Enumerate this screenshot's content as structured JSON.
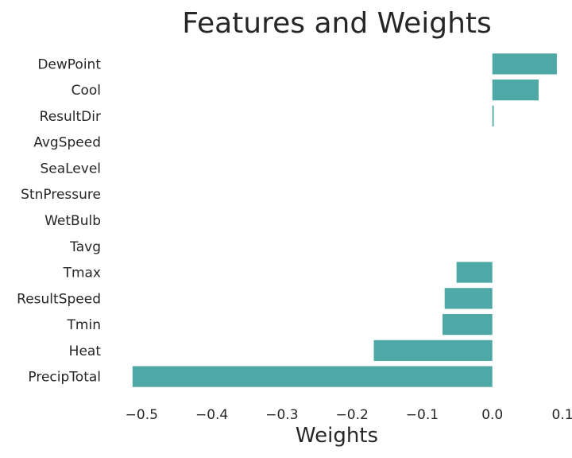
{
  "chart_data": {
    "type": "bar",
    "orientation": "horizontal",
    "title": "Features and Weights",
    "xlabel": "Weights",
    "ylabel": "",
    "categories": [
      "DewPoint",
      "Cool",
      "ResultDir",
      "AvgSpeed",
      "SeaLevel",
      "StnPressure",
      "WetBulb",
      "Tavg",
      "Tmax",
      "ResultSpeed",
      "Tmin",
      "Heat",
      "PrecipTotal"
    ],
    "values": [
      0.092,
      0.066,
      0.002,
      0.0,
      0.0,
      0.0,
      0.0,
      0.0,
      -0.051,
      -0.068,
      -0.071,
      -0.169,
      -0.513
    ],
    "xlim": [
      -0.54,
      0.1
    ],
    "xticks": [
      -0.5,
      -0.4,
      -0.3,
      -0.2,
      -0.1,
      0.0,
      0.1
    ],
    "xtick_labels": [
      "−0.5",
      "−0.4",
      "−0.3",
      "−0.2",
      "−0.1",
      "0.0",
      "0.1"
    ],
    "bar_color": "#4ea9a6",
    "grid": false
  }
}
